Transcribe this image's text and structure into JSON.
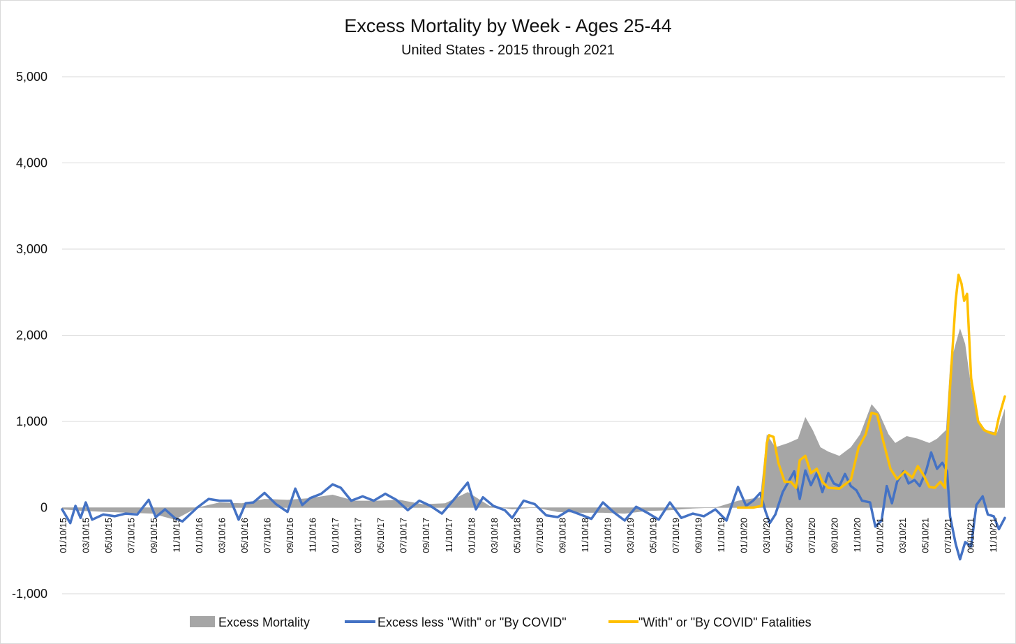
{
  "chart_data": {
    "type": "line",
    "title": "Excess Mortality by Week - Ages 25-44",
    "subtitle": "United States - 2015 through 2021",
    "xlabel": "",
    "ylabel": "",
    "ylim": [
      -1000,
      5000
    ],
    "y_ticks": [
      "5,000",
      "4,000",
      "3,000",
      "2,000",
      "1,000",
      "0",
      "-1,000"
    ],
    "y_tick_values": [
      5000,
      4000,
      3000,
      2000,
      1000,
      0,
      -1000
    ],
    "x_range": [
      "2015-01-10",
      "2021-12-31"
    ],
    "x_ticks": [
      "01/10/15",
      "03/10/15",
      "05/10/15",
      "07/10/15",
      "09/10/15",
      "11/10/15",
      "01/10/16",
      "03/10/16",
      "05/10/16",
      "07/10/16",
      "09/10/16",
      "11/10/16",
      "01/10/17",
      "03/10/17",
      "05/10/17",
      "07/10/17",
      "09/10/17",
      "11/10/17",
      "01/10/18",
      "03/10/18",
      "05/10/18",
      "07/10/18",
      "09/10/18",
      "11/10/18",
      "01/10/19",
      "03/10/19",
      "05/10/19",
      "07/10/19",
      "09/10/19",
      "11/10/19",
      "01/10/20",
      "03/10/20",
      "05/10/20",
      "07/10/20",
      "09/10/20",
      "11/10/20",
      "01/10/21",
      "03/10/21",
      "05/10/21",
      "07/10/21",
      "09/10/21",
      "11/10/21"
    ],
    "grid": true,
    "legend_position": "bottom",
    "series": [
      {
        "name": "Excess Mortality",
        "type": "area",
        "color": "#a6a6a6",
        "points": [
          [
            "2015-01-10",
            -20
          ],
          [
            "2015-03-10",
            -40
          ],
          [
            "2015-05-10",
            -50
          ],
          [
            "2015-07-10",
            -60
          ],
          [
            "2015-09-10",
            -70
          ],
          [
            "2015-11-10",
            -140
          ],
          [
            "2016-01-10",
            0
          ],
          [
            "2016-03-10",
            60
          ],
          [
            "2016-05-10",
            50
          ],
          [
            "2016-07-10",
            100
          ],
          [
            "2016-09-10",
            90
          ],
          [
            "2016-11-10",
            110
          ],
          [
            "2017-01-10",
            150
          ],
          [
            "2017-03-10",
            80
          ],
          [
            "2017-05-10",
            80
          ],
          [
            "2017-07-10",
            90
          ],
          [
            "2017-09-10",
            40
          ],
          [
            "2017-11-10",
            50
          ],
          [
            "2018-01-10",
            180
          ],
          [
            "2018-03-10",
            20
          ],
          [
            "2018-05-10",
            -20
          ],
          [
            "2018-07-10",
            0
          ],
          [
            "2018-09-10",
            -50
          ],
          [
            "2018-11-10",
            -60
          ],
          [
            "2019-01-10",
            -60
          ],
          [
            "2019-03-10",
            -70
          ],
          [
            "2019-05-10",
            -40
          ],
          [
            "2019-07-10",
            -30
          ],
          [
            "2019-09-10",
            -10
          ],
          [
            "2019-11-10",
            0
          ],
          [
            "2020-01-10",
            80
          ],
          [
            "2020-03-10",
            120
          ],
          [
            "2020-03-28",
            850
          ],
          [
            "2020-04-20",
            700
          ],
          [
            "2020-05-25",
            750
          ],
          [
            "2020-06-20",
            800
          ],
          [
            "2020-07-10",
            1050
          ],
          [
            "2020-07-30",
            900
          ],
          [
            "2020-08-20",
            700
          ],
          [
            "2020-09-10",
            650
          ],
          [
            "2020-10-10",
            600
          ],
          [
            "2020-11-10",
            700
          ],
          [
            "2020-12-05",
            850
          ],
          [
            "2021-01-05",
            1200
          ],
          [
            "2021-01-25",
            1100
          ],
          [
            "2021-02-20",
            850
          ],
          [
            "2021-03-10",
            750
          ],
          [
            "2021-04-10",
            830
          ],
          [
            "2021-05-10",
            800
          ],
          [
            "2021-06-10",
            750
          ],
          [
            "2021-07-01",
            800
          ],
          [
            "2021-07-25",
            900
          ],
          [
            "2021-08-05",
            1650
          ],
          [
            "2021-08-20",
            1900
          ],
          [
            "2021-09-01",
            2080
          ],
          [
            "2021-09-15",
            1900
          ],
          [
            "2021-10-01",
            1400
          ],
          [
            "2021-10-20",
            1000
          ],
          [
            "2021-11-10",
            900
          ],
          [
            "2021-12-10",
            870
          ],
          [
            "2021-12-31",
            1150
          ]
        ]
      },
      {
        "name": "Excess less \"With\" or \"By COVID\"",
        "type": "line",
        "color": "#4472c4",
        "points": [
          [
            "2015-01-10",
            -20
          ],
          [
            "2015-02-01",
            -180
          ],
          [
            "2015-02-15",
            20
          ],
          [
            "2015-03-01",
            -120
          ],
          [
            "2015-03-15",
            60
          ],
          [
            "2015-04-01",
            -140
          ],
          [
            "2015-05-01",
            -80
          ],
          [
            "2015-06-01",
            -100
          ],
          [
            "2015-07-01",
            -70
          ],
          [
            "2015-08-01",
            -80
          ],
          [
            "2015-09-01",
            90
          ],
          [
            "2015-09-20",
            -110
          ],
          [
            "2015-10-15",
            -20
          ],
          [
            "2015-11-10",
            -120
          ],
          [
            "2015-12-01",
            -160
          ],
          [
            "2016-01-10",
            0
          ],
          [
            "2016-02-10",
            100
          ],
          [
            "2016-03-10",
            80
          ],
          [
            "2016-04-10",
            80
          ],
          [
            "2016-05-01",
            -140
          ],
          [
            "2016-05-20",
            50
          ],
          [
            "2016-06-10",
            60
          ],
          [
            "2016-07-10",
            170
          ],
          [
            "2016-08-10",
            40
          ],
          [
            "2016-09-10",
            -50
          ],
          [
            "2016-10-01",
            220
          ],
          [
            "2016-10-20",
            30
          ],
          [
            "2016-11-10",
            110
          ],
          [
            "2016-12-10",
            160
          ],
          [
            "2017-01-10",
            270
          ],
          [
            "2017-02-01",
            230
          ],
          [
            "2017-03-01",
            80
          ],
          [
            "2017-04-01",
            130
          ],
          [
            "2017-05-01",
            80
          ],
          [
            "2017-06-01",
            160
          ],
          [
            "2017-07-01",
            90
          ],
          [
            "2017-08-01",
            -30
          ],
          [
            "2017-09-01",
            80
          ],
          [
            "2017-10-01",
            20
          ],
          [
            "2017-11-01",
            -70
          ],
          [
            "2017-12-01",
            80
          ],
          [
            "2018-01-10",
            290
          ],
          [
            "2018-02-01",
            -20
          ],
          [
            "2018-02-20",
            120
          ],
          [
            "2018-03-20",
            20
          ],
          [
            "2018-04-20",
            -30
          ],
          [
            "2018-05-10",
            -120
          ],
          [
            "2018-06-10",
            80
          ],
          [
            "2018-07-10",
            40
          ],
          [
            "2018-08-10",
            -90
          ],
          [
            "2018-09-10",
            -110
          ],
          [
            "2018-10-10",
            -30
          ],
          [
            "2018-11-10",
            -80
          ],
          [
            "2018-12-10",
            -130
          ],
          [
            "2019-01-10",
            60
          ],
          [
            "2019-02-10",
            -60
          ],
          [
            "2019-03-10",
            -150
          ],
          [
            "2019-04-10",
            10
          ],
          [
            "2019-05-10",
            -60
          ],
          [
            "2019-06-10",
            -140
          ],
          [
            "2019-07-10",
            60
          ],
          [
            "2019-08-10",
            -120
          ],
          [
            "2019-09-10",
            -70
          ],
          [
            "2019-10-10",
            -100
          ],
          [
            "2019-11-10",
            -20
          ],
          [
            "2019-12-10",
            -150
          ],
          [
            "2020-01-10",
            240
          ],
          [
            "2020-02-01",
            20
          ],
          [
            "2020-02-20",
            80
          ],
          [
            "2020-03-10",
            170
          ],
          [
            "2020-03-25",
            -50
          ],
          [
            "2020-04-05",
            -180
          ],
          [
            "2020-04-20",
            -80
          ],
          [
            "2020-05-10",
            180
          ],
          [
            "2020-06-10",
            420
          ],
          [
            "2020-06-25",
            100
          ],
          [
            "2020-07-10",
            430
          ],
          [
            "2020-07-25",
            260
          ],
          [
            "2020-08-10",
            400
          ],
          [
            "2020-08-25",
            180
          ],
          [
            "2020-09-10",
            400
          ],
          [
            "2020-09-25",
            280
          ],
          [
            "2020-10-10",
            250
          ],
          [
            "2020-10-25",
            390
          ],
          [
            "2020-11-10",
            250
          ],
          [
            "2020-11-25",
            200
          ],
          [
            "2020-12-10",
            80
          ],
          [
            "2021-01-01",
            60
          ],
          [
            "2021-01-15",
            -220
          ],
          [
            "2021-02-01",
            -150
          ],
          [
            "2021-02-15",
            250
          ],
          [
            "2021-03-01",
            50
          ],
          [
            "2021-03-15",
            300
          ],
          [
            "2021-04-01",
            420
          ],
          [
            "2021-04-15",
            280
          ],
          [
            "2021-05-01",
            320
          ],
          [
            "2021-05-15",
            250
          ],
          [
            "2021-06-01",
            420
          ],
          [
            "2021-06-15",
            640
          ],
          [
            "2021-07-01",
            450
          ],
          [
            "2021-07-15",
            520
          ],
          [
            "2021-07-28",
            420
          ],
          [
            "2021-08-05",
            -100
          ],
          [
            "2021-08-20",
            -420
          ],
          [
            "2021-09-01",
            -600
          ],
          [
            "2021-09-15",
            -400
          ],
          [
            "2021-10-01",
            -450
          ],
          [
            "2021-10-15",
            30
          ],
          [
            "2021-11-01",
            130
          ],
          [
            "2021-11-15",
            -80
          ],
          [
            "2021-12-01",
            -100
          ],
          [
            "2021-12-15",
            -250
          ],
          [
            "2021-12-31",
            -120
          ]
        ]
      },
      {
        "name": "\"With\" or \"By COVID\" Fatalities",
        "type": "line",
        "color": "#ffc000",
        "points": [
          [
            "2020-01-10",
            0
          ],
          [
            "2020-02-20",
            0
          ],
          [
            "2020-03-14",
            20
          ],
          [
            "2020-03-28",
            750
          ],
          [
            "2020-04-03",
            840
          ],
          [
            "2020-04-15",
            820
          ],
          [
            "2020-04-28",
            520
          ],
          [
            "2020-05-15",
            300
          ],
          [
            "2020-06-01",
            300
          ],
          [
            "2020-06-15",
            230
          ],
          [
            "2020-06-25",
            550
          ],
          [
            "2020-07-10",
            600
          ],
          [
            "2020-07-25",
            400
          ],
          [
            "2020-08-10",
            450
          ],
          [
            "2020-08-25",
            300
          ],
          [
            "2020-09-10",
            230
          ],
          [
            "2020-10-10",
            220
          ],
          [
            "2020-11-10",
            320
          ],
          [
            "2020-12-01",
            700
          ],
          [
            "2020-12-20",
            850
          ],
          [
            "2021-01-05",
            1100
          ],
          [
            "2021-01-20",
            1080
          ],
          [
            "2021-02-05",
            780
          ],
          [
            "2021-02-25",
            450
          ],
          [
            "2021-03-15",
            330
          ],
          [
            "2021-04-05",
            420
          ],
          [
            "2021-04-25",
            350
          ],
          [
            "2021-05-10",
            480
          ],
          [
            "2021-05-25",
            380
          ],
          [
            "2021-06-10",
            240
          ],
          [
            "2021-06-25",
            230
          ],
          [
            "2021-07-10",
            300
          ],
          [
            "2021-07-22",
            230
          ],
          [
            "2021-08-05",
            1400
          ],
          [
            "2021-08-20",
            2400
          ],
          [
            "2021-08-28",
            2700
          ],
          [
            "2021-09-05",
            2600
          ],
          [
            "2021-09-12",
            2400
          ],
          [
            "2021-09-20",
            2480
          ],
          [
            "2021-10-01",
            1500
          ],
          [
            "2021-10-20",
            1000
          ],
          [
            "2021-11-05",
            900
          ],
          [
            "2021-11-20",
            870
          ],
          [
            "2021-12-05",
            850
          ],
          [
            "2021-12-15",
            1050
          ],
          [
            "2021-12-31",
            1290
          ]
        ]
      }
    ]
  }
}
